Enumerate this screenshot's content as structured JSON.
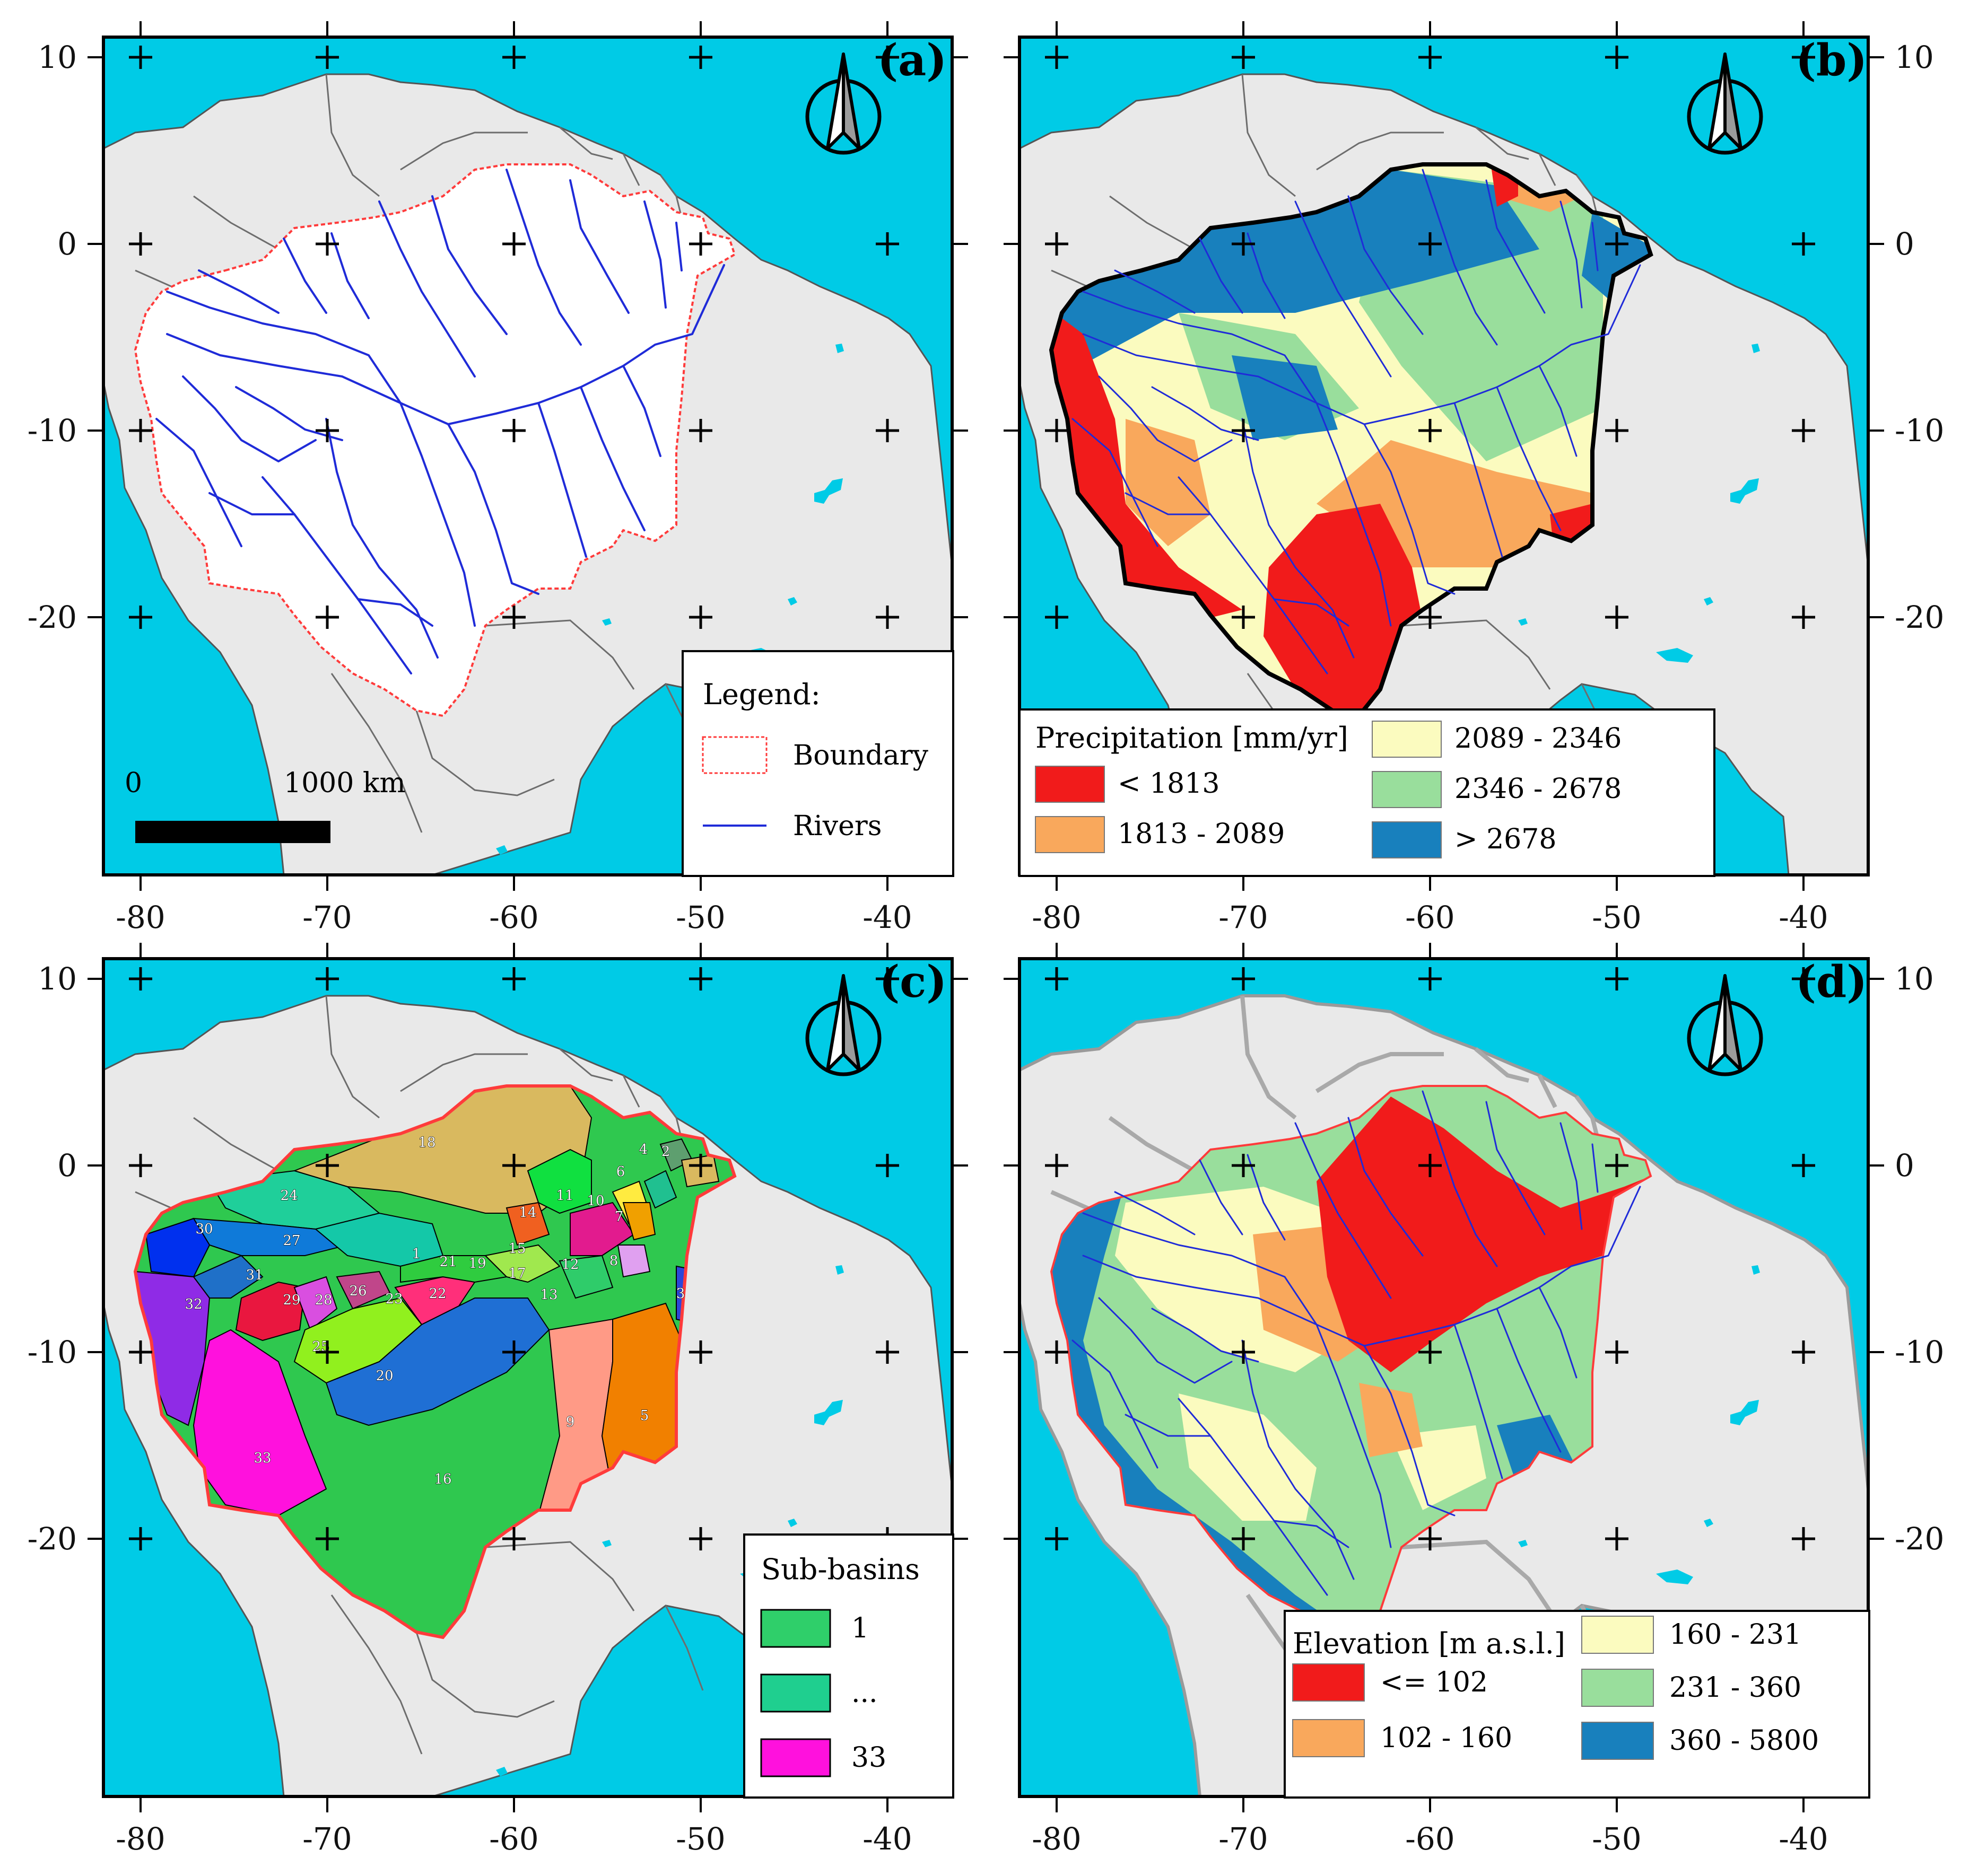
{
  "colors": {
    "ocean": "#00cbe6",
    "land": "#e9e9e9",
    "basin_white": "#ffffff",
    "rivers": "#1f2bd8",
    "boundary": "#ff3b3b",
    "border_lines": "#6d6d6d",
    "black": "#000000"
  },
  "axes": {
    "lon_ticks": [
      "-80",
      "-70",
      "-60",
      "-50",
      "-40"
    ],
    "lat_ticks": [
      "10",
      "0",
      "-10",
      "-20"
    ]
  },
  "panels": {
    "a": {
      "letter": "(a)",
      "legend": {
        "title": "Legend:",
        "boundary_label": "Boundary",
        "rivers_label": "Rivers"
      },
      "scalebar": {
        "start": "0",
        "end": "1000 km"
      }
    },
    "b": {
      "letter": "(b)",
      "legend": {
        "title": "Precipitation [mm/yr]",
        "classes": [
          {
            "label": "< 1813",
            "color": "#f11b1b"
          },
          {
            "label": "1813 - 2089",
            "color": "#f9a85c"
          },
          {
            "label": "2089 - 2346",
            "color": "#fbfbbf"
          },
          {
            "label": "2346 - 2678",
            "color": "#99de9c"
          },
          {
            "label": "> 2678",
            "color": "#1880bd"
          }
        ]
      }
    },
    "c": {
      "letter": "(c)",
      "legend": {
        "title": "Sub-basins",
        "classes": [
          {
            "label": "1",
            "color": "#2fcf6a"
          },
          {
            "label": "...",
            "color": "#1fcf8f"
          },
          {
            "label": "33",
            "color": "#ff11dd"
          }
        ]
      },
      "basin_labels": [
        "1",
        "2",
        "3",
        "4",
        "5",
        "6",
        "7",
        "8",
        "9",
        "10",
        "11",
        "12",
        "13",
        "14",
        "15",
        "16",
        "17",
        "18",
        "19",
        "20",
        "21",
        "22",
        "23",
        "24",
        "25",
        "26",
        "27",
        "28",
        "29",
        "30",
        "31",
        "32",
        "33"
      ]
    },
    "d": {
      "letter": "(d)",
      "legend": {
        "title": "Elevation [m a.s.l.]",
        "classes": [
          {
            "label": "<= 102",
            "color": "#f11b1b"
          },
          {
            "label": "102 - 160",
            "color": "#f9a85c"
          },
          {
            "label": "160 - 231",
            "color": "#fbfbbf"
          },
          {
            "label": "231 - 360",
            "color": "#99de9c"
          },
          {
            "label": "360 - 5800",
            "color": "#1880bd"
          }
        ]
      }
    }
  }
}
